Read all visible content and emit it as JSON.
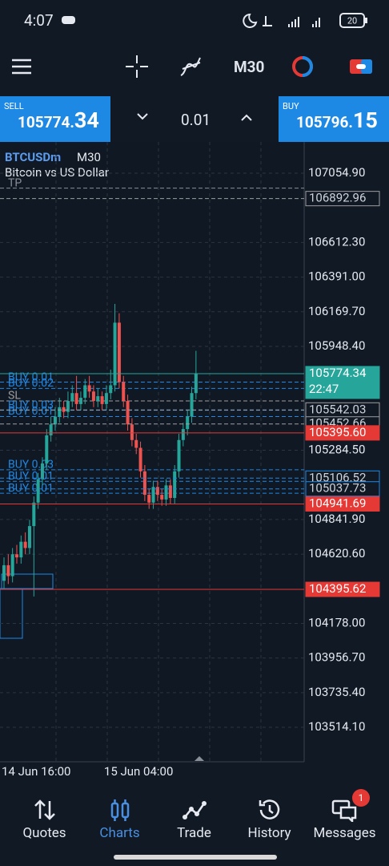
{
  "status_bar": {
    "time": "4:07",
    "battery": "20"
  },
  "toolbar": {
    "timeframe": "M30"
  },
  "trade_bar": {
    "sell_label": "SELL",
    "sell_price_main": "105774.",
    "sell_price_big": "34",
    "lot": "0.01",
    "buy_label": "BUY",
    "buy_price_main": "105796.",
    "buy_price_big": "15"
  },
  "chart_data": {
    "type": "candlestick",
    "symbol": "BTCUSDm",
    "timeframe": "M30",
    "title": "Bitcoin vs US Dollar",
    "categories": [
      "14 Jun 16:00",
      null,
      null,
      null,
      null,
      null,
      null,
      null,
      null,
      null,
      null,
      null,
      null,
      null,
      null,
      null,
      null,
      null,
      null,
      null,
      null,
      null,
      null,
      null,
      "15 Jun 04:00",
      null,
      null,
      null,
      null,
      null,
      null,
      null,
      null,
      null,
      null,
      null,
      null,
      null,
      null,
      null,
      null,
      null,
      null,
      null,
      null,
      null
    ],
    "open": [
      104450,
      104550,
      104480,
      104620,
      104600,
      104700,
      104660,
      104800,
      104950,
      105100,
      105200,
      105380,
      105450,
      105500,
      105560,
      105530,
      105600,
      105650,
      105580,
      105620,
      105700,
      105660,
      105600,
      105630,
      105580,
      105650,
      105700,
      106100,
      105720,
      105600,
      105450,
      105350,
      105300,
      105150,
      105000,
      104950,
      105050,
      105000,
      104970,
      105060,
      104980,
      105150,
      105350,
      105420,
      105500,
      105650
    ],
    "high": [
      104600,
      104620,
      104660,
      104680,
      104740,
      104760,
      104840,
      104990,
      105140,
      105240,
      105420,
      105500,
      105560,
      105620,
      105600,
      105660,
      105700,
      105760,
      105660,
      105740,
      105760,
      105700,
      105680,
      105660,
      105700,
      105800,
      106220,
      106160,
      105760,
      105640,
      105490,
      105390,
      105340,
      105190,
      105040,
      105090,
      105090,
      105040,
      105100,
      105100,
      105190,
      105390,
      105460,
      105540,
      105690,
      105920
    ],
    "low": [
      104400,
      104430,
      104440,
      104560,
      104560,
      104620,
      104620,
      104350,
      104910,
      105060,
      105160,
      105340,
      105410,
      105460,
      105490,
      105490,
      105560,
      105540,
      105540,
      105580,
      105620,
      105560,
      105560,
      105540,
      105540,
      105610,
      105660,
      105680,
      105560,
      105410,
      105310,
      105260,
      105110,
      104960,
      104910,
      104910,
      104960,
      104930,
      104930,
      104940,
      104940,
      105110,
      105310,
      105380,
      105460,
      105610
    ],
    "close": [
      104550,
      104480,
      104620,
      104600,
      104700,
      104660,
      104800,
      104950,
      105100,
      105200,
      105380,
      105450,
      105500,
      105560,
      105530,
      105600,
      105650,
      105580,
      105620,
      105700,
      105660,
      105600,
      105630,
      105580,
      105650,
      105700,
      106100,
      105720,
      105600,
      105450,
      105350,
      105300,
      105150,
      105000,
      104950,
      105050,
      105000,
      104970,
      105060,
      104980,
      105150,
      105350,
      105420,
      105500,
      105650,
      105774.34
    ],
    "up_color": "#26a69a",
    "down_color": "#ef5350",
    "ylim": [
      103294,
      107255
    ],
    "yticks": [
      {
        "value": 107054.9,
        "label": "107054.90"
      },
      {
        "value": 106612.3,
        "label": "106612.30"
      },
      {
        "value": 106391,
        "label": "106391.00"
      },
      {
        "value": 106169.7,
        "label": "106169.70"
      },
      {
        "value": 105948.4,
        "label": "105948.40"
      },
      {
        "value": 105284.5,
        "label": "105284.50"
      },
      {
        "value": 104841.9,
        "label": "104841.90"
      },
      {
        "value": 104620.6,
        "label": "104620.60"
      },
      {
        "value": 104178,
        "label": "104178.00"
      },
      {
        "value": 103956.7,
        "label": "103956.70"
      },
      {
        "value": 103735.4,
        "label": "103735.40"
      },
      {
        "value": 103514.1,
        "label": "103514.10"
      }
    ],
    "grid": true,
    "levels": [
      {
        "value": 106892.96,
        "label": "106892.96",
        "color": "#9e9e9e",
        "style": "outline"
      },
      {
        "value": 105774.34,
        "label": "105774.34",
        "sub": "22:47",
        "color": "#26a69a",
        "style": "fill"
      },
      {
        "value": 105542.03,
        "label": "105542.03",
        "color": "#9e9e9e",
        "style": "outline"
      },
      {
        "value": 105452.66,
        "label": "105452.66",
        "color": "#9e9e9e",
        "style": "outline"
      },
      {
        "value": 105395.6,
        "label": "105395.60",
        "color": "#e53935",
        "style": "fill"
      },
      {
        "value": 105106.52,
        "label": "105106.52",
        "color": "#1e88e5",
        "style": "outline"
      },
      {
        "value": 105037.73,
        "label": "105037.73",
        "color": "#1e88e5",
        "style": "outline"
      },
      {
        "value": 104941.69,
        "label": "104941.69",
        "color": "#e53935",
        "style": "fill"
      },
      {
        "value": 104395.62,
        "label": "104395.62",
        "color": "#e53935",
        "style": "fill"
      }
    ],
    "orders": [
      {
        "label": "TP",
        "value": 106960,
        "color": "#8a8f98"
      },
      {
        "label": "BUY 0.01",
        "value": 105720,
        "color": "#1e88e5"
      },
      {
        "label": "BUY 0.02",
        "value": 105680,
        "color": "#1e88e5"
      },
      {
        "label": "SL",
        "value": 105600,
        "color": "#9e9e9e"
      },
      {
        "label": "BUY 0.03",
        "value": 105540,
        "color": "#1e88e5"
      },
      {
        "label": "BUY 0.01",
        "value": 105500,
        "color": "#1e88e5"
      },
      {
        "label": "BUY 0.03",
        "value": 105160,
        "color": "#1e88e5"
      },
      {
        "label": "BUY 0.01",
        "value": 105086,
        "color": "#1e88e5"
      },
      {
        "label": "BUY 0.01",
        "value": 105010,
        "color": "#1e88e5"
      }
    ]
  },
  "nav": [
    {
      "label": "Quotes"
    },
    {
      "label": "Charts"
    },
    {
      "label": "Trade"
    },
    {
      "label": "History"
    },
    {
      "label": "Messages"
    }
  ],
  "badge": "1"
}
